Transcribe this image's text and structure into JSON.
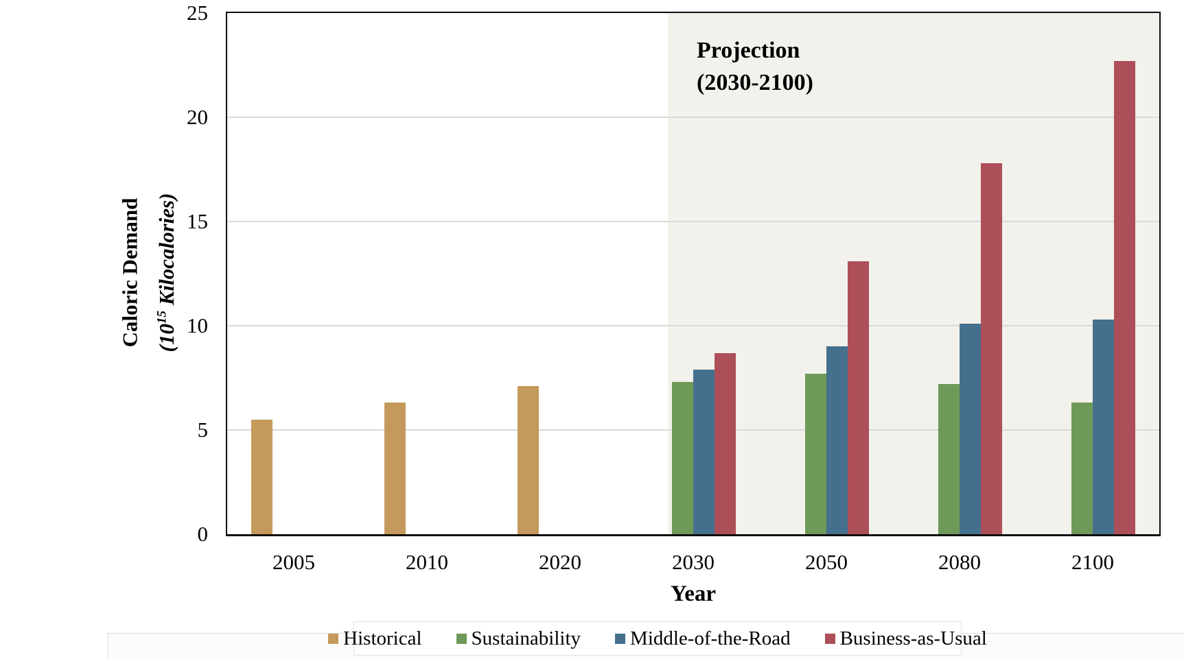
{
  "chart_data": {
    "type": "bar",
    "title": "",
    "xlabel": "Year",
    "ylabel": "Caloric Demand",
    "ylabel_unit_prefix": "(10",
    "ylabel_unit_sup": "15",
    "ylabel_unit_suffix": " Kilocalories)",
    "categories": [
      "2005",
      "2010",
      "2020",
      "2030",
      "2050",
      "2080",
      "2100"
    ],
    "series": [
      {
        "name": "Historical",
        "color": "#c49a5c",
        "values": [
          5.5,
          6.3,
          7.1,
          null,
          null,
          null,
          null
        ]
      },
      {
        "name": "Sustainability",
        "color": "#6f9958",
        "values": [
          null,
          null,
          null,
          7.3,
          7.7,
          7.2,
          6.3
        ]
      },
      {
        "name": "Middle-of-the-Road",
        "color": "#44708e",
        "values": [
          null,
          null,
          null,
          7.9,
          9.0,
          10.1,
          10.3
        ]
      },
      {
        "name": "Business-as-Usual",
        "color": "#ad4f58",
        "values": [
          null,
          null,
          null,
          8.7,
          13.1,
          17.8,
          22.7
        ]
      }
    ],
    "ylim": [
      0,
      25
    ],
    "yticks": [
      0,
      5,
      10,
      15,
      20,
      25
    ],
    "grid": true,
    "grid_color": "#d9d9d9",
    "axis_color": "#0d0d0d",
    "legend_position": "bottom",
    "annotation": {
      "line1": "Projection",
      "line2": "(2030-2100)"
    },
    "projection": {
      "start_category": "2030",
      "end_category": "2100",
      "shade_color": "#f2f1ec"
    }
  }
}
